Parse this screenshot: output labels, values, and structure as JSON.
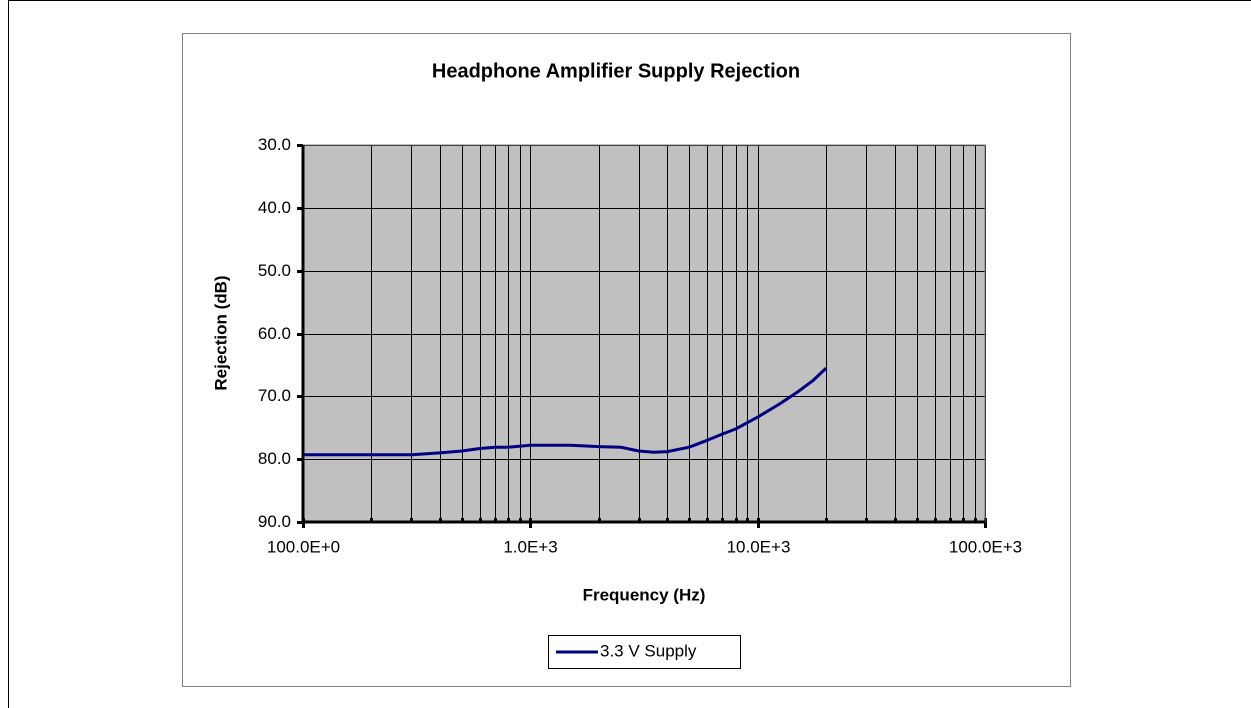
{
  "chart_data": {
    "type": "line",
    "title": "Headphone Amplifier Supply Rejection",
    "xlabel": "Frequency (Hz)",
    "ylabel": "Rejection (dB)",
    "x": [
      100,
      200,
      300,
      400,
      500,
      600,
      700,
      800,
      1000,
      1500,
      2000,
      2500,
      3000,
      3500,
      4000,
      5000,
      6000,
      7000,
      8000,
      10000,
      12500,
      15000,
      17500,
      20000
    ],
    "series": [
      {
        "name": "3.3 V Supply",
        "color": "#000080",
        "values": [
          79.3,
          79.3,
          79.3,
          79.0,
          78.7,
          78.3,
          78.1,
          78.1,
          77.8,
          77.8,
          78.0,
          78.1,
          78.7,
          78.9,
          78.8,
          78.1,
          77.0,
          76.0,
          75.2,
          73.3,
          71.2,
          69.3,
          67.5,
          65.5
        ]
      }
    ],
    "xscale": "log",
    "xlim": [
      100,
      100000
    ],
    "xticks": [
      {
        "value": 100,
        "label": "100.0E+0"
      },
      {
        "value": 1000,
        "label": "1.0E+3"
      },
      {
        "value": 10000,
        "label": "10.0E+3"
      },
      {
        "value": 100000,
        "label": "100.0E+3"
      }
    ],
    "xminorticks": [
      200,
      300,
      400,
      500,
      600,
      700,
      800,
      900,
      2000,
      3000,
      4000,
      5000,
      6000,
      7000,
      8000,
      9000,
      20000,
      30000,
      40000,
      50000,
      60000,
      70000,
      80000,
      90000
    ],
    "ylim": [
      90,
      30
    ],
    "yticks": [
      {
        "value": 30,
        "label": "30.0"
      },
      {
        "value": 40,
        "label": "40.0"
      },
      {
        "value": 50,
        "label": "50.0"
      },
      {
        "value": 60,
        "label": "60.0"
      },
      {
        "value": 70,
        "label": "70.0"
      },
      {
        "value": 80,
        "label": "80.0"
      },
      {
        "value": 90,
        "label": "90.0"
      }
    ],
    "grid": true,
    "plot_background": "#c0c0c0",
    "legend": "bottom"
  }
}
